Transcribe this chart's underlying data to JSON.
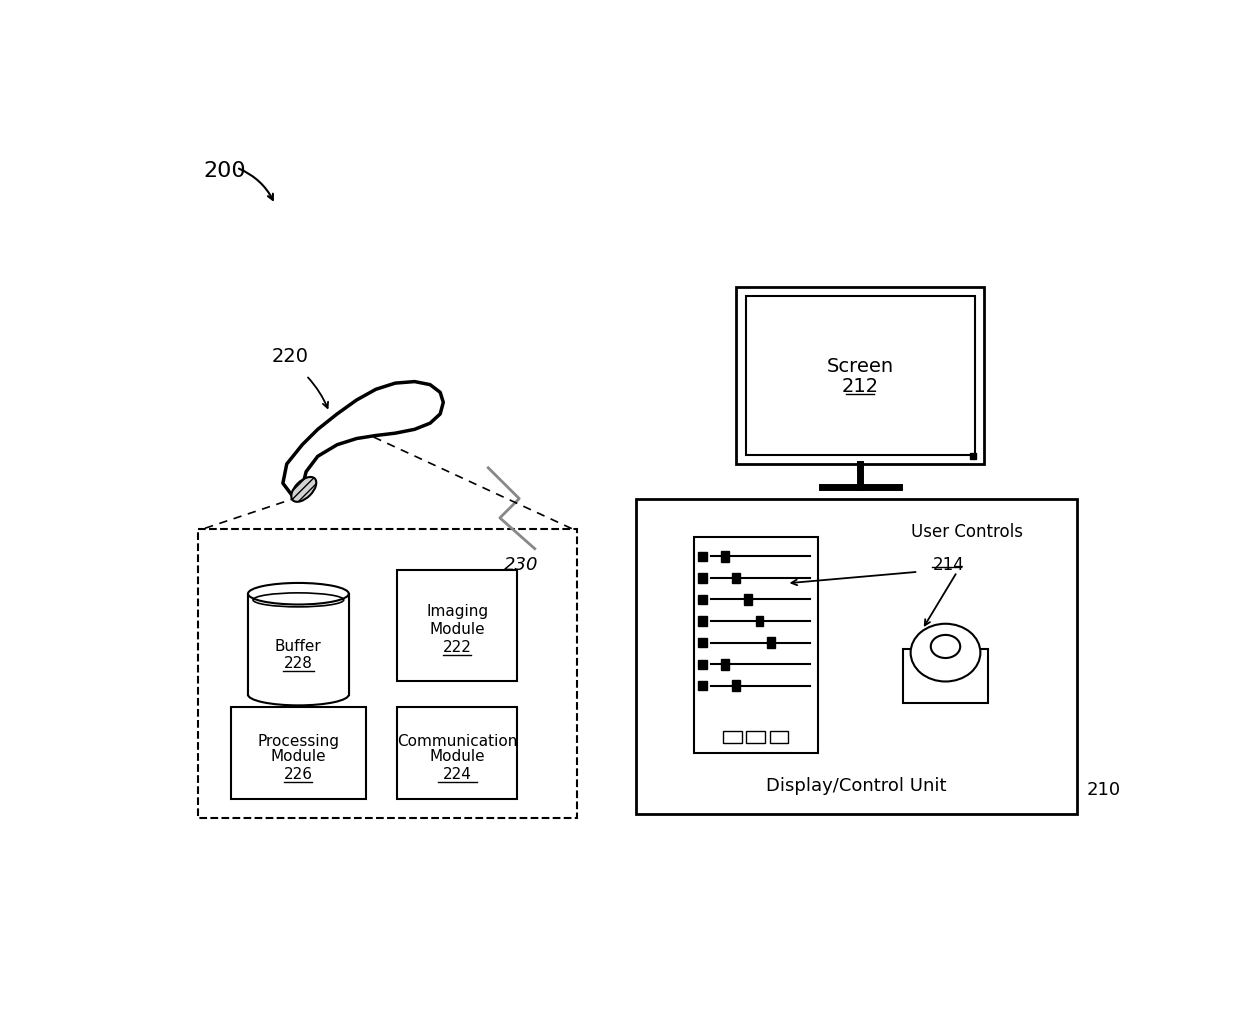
{
  "bg_color": "#ffffff",
  "fig_label": "200",
  "probe_label": "220",
  "signal_label": "230",
  "screen_label": "Screen\n212",
  "unit_label": "210",
  "display_control_label": "Display/Control Unit",
  "buffer_label": "Buffer\n228",
  "imaging_label": "Imaging\nModule\n222",
  "processing_label": "Processing\nModule\n226",
  "communication_label": "Communication\nModule\n224",
  "user_controls_label": "User Controls",
  "user_controls_num": "214",
  "font_size_large": 13,
  "font_size_medium": 12,
  "font_size_small": 11
}
